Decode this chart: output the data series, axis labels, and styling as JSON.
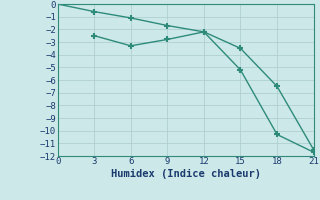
{
  "line1_x": [
    0,
    3,
    6,
    9,
    12,
    15,
    18,
    21
  ],
  "line1_y": [
    0,
    -0.6,
    -1.1,
    -1.7,
    -2.2,
    -3.5,
    -6.5,
    -11.5
  ],
  "line2_x": [
    3,
    6,
    9,
    12,
    15,
    18,
    21
  ],
  "line2_y": [
    -2.5,
    -3.3,
    -2.8,
    -2.2,
    -5.2,
    -10.3,
    -11.7
  ],
  "color": "#2e8b7a",
  "bg_color": "#cce8e8",
  "grid_color": "#b0d0d0",
  "xlabel": "Humidex (Indice chaleur)",
  "xlim": [
    0,
    21
  ],
  "ylim": [
    -12,
    0
  ],
  "xticks": [
    0,
    3,
    6,
    9,
    12,
    15,
    18,
    21
  ],
  "yticks": [
    0,
    -1,
    -2,
    -3,
    -4,
    -5,
    -6,
    -7,
    -8,
    -9,
    -10,
    -11,
    -12
  ],
  "xlabel_fontsize": 7.5,
  "tick_fontsize": 6.5,
  "line_width": 1.0,
  "marker": "+",
  "marker_size": 5,
  "marker_ew": 1.5
}
